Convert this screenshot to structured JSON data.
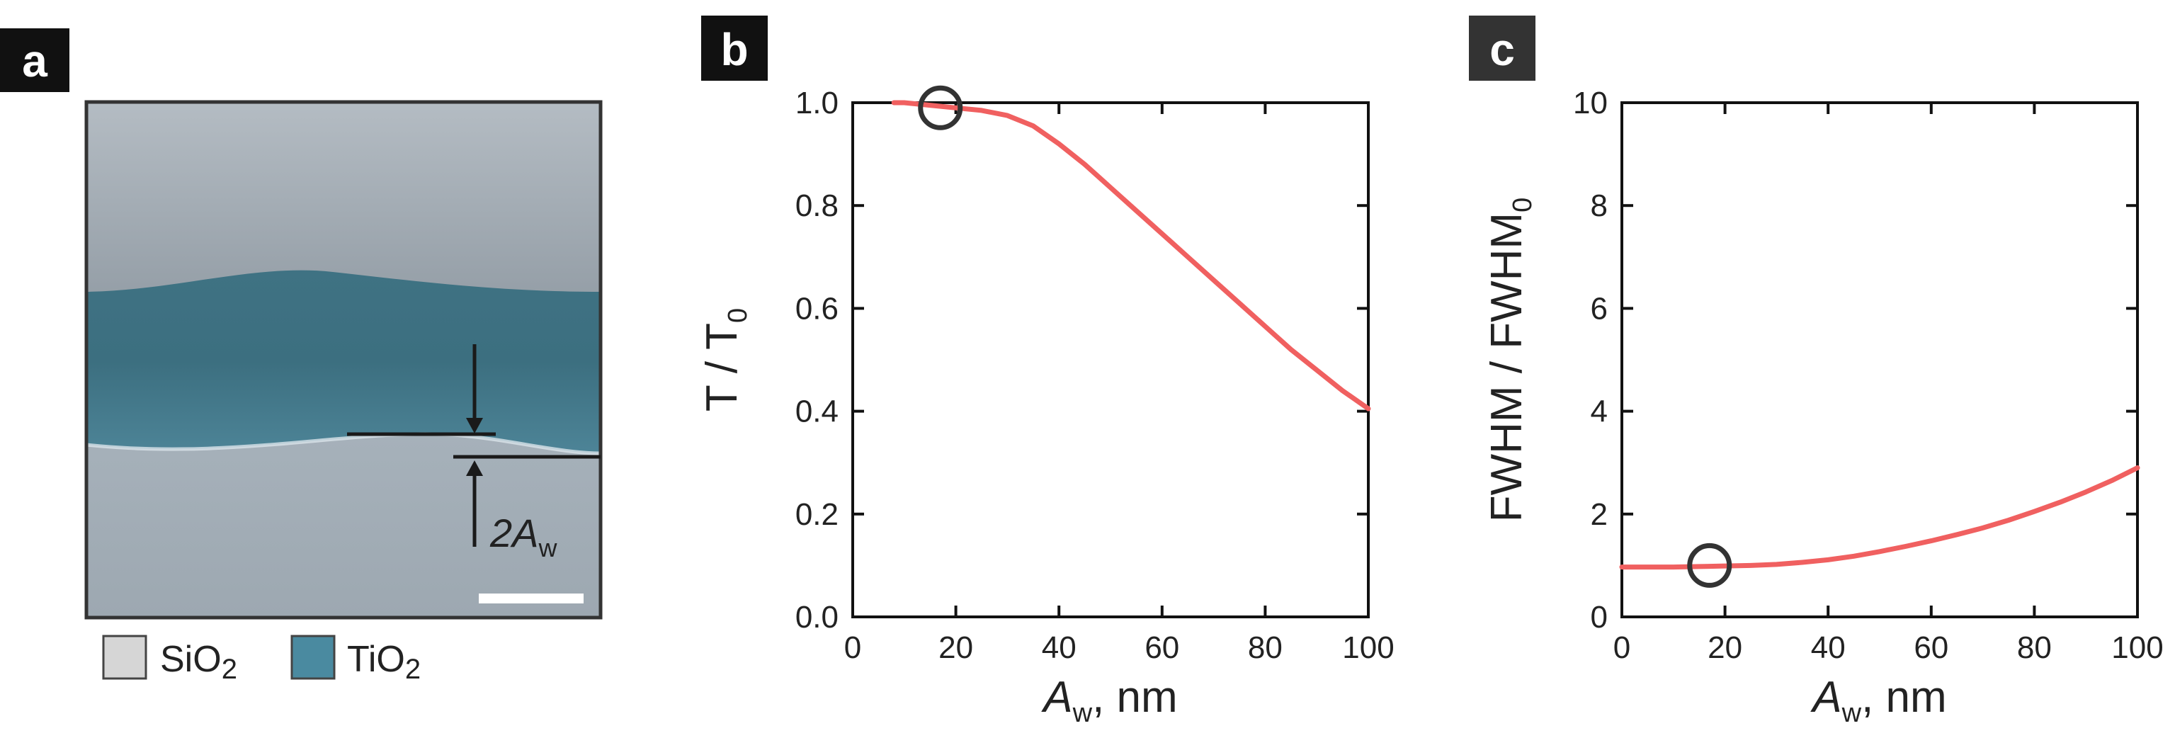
{
  "panels": {
    "a": {
      "label": "a"
    },
    "b": {
      "label": "b"
    },
    "c": {
      "label": "c"
    }
  },
  "panel_a": {
    "legend": [
      {
        "name": "SiO",
        "sub": "2",
        "color": "#d6d6d6"
      },
      {
        "name": "TiO",
        "sub": "2",
        "color": "#4a8aa0"
      }
    ],
    "annotation": {
      "text": "2A",
      "sub": "w"
    }
  },
  "chart_data": [
    {
      "type": "line",
      "panel": "b",
      "xlabel": "A",
      "xlabel_sub": "w",
      "xlabel_suffix": ", nm",
      "ylabel": "T / T",
      "ylabel_sub": "0",
      "xlim": [
        0,
        100
      ],
      "ylim": [
        0,
        1.0
      ],
      "xticks": [
        0,
        20,
        40,
        60,
        80,
        100
      ],
      "yticks": [
        0.0,
        0.2,
        0.4,
        0.6,
        0.8,
        1.0
      ],
      "ytick_labels": [
        "0.0",
        "0.2",
        "0.4",
        "0.6",
        "0.8",
        "1.0"
      ],
      "series": [
        {
          "color": "#f06060",
          "x": [
            8,
            10,
            15,
            20,
            25,
            30,
            35,
            40,
            45,
            50,
            55,
            60,
            65,
            70,
            75,
            80,
            85,
            90,
            95,
            100
          ],
          "y": [
            1.0,
            1.0,
            0.995,
            0.99,
            0.985,
            0.975,
            0.955,
            0.92,
            0.88,
            0.835,
            0.79,
            0.745,
            0.7,
            0.655,
            0.61,
            0.565,
            0.52,
            0.48,
            0.44,
            0.405
          ]
        }
      ],
      "marker": {
        "x": 17,
        "y": 0.99,
        "shape": "circle"
      }
    },
    {
      "type": "line",
      "panel": "c",
      "xlabel": "A",
      "xlabel_sub": "w",
      "xlabel_suffix": ", nm",
      "ylabel": "FWHM / FWHM",
      "ylabel_sub": "0",
      "xlim": [
        0,
        100
      ],
      "ylim": [
        0,
        10
      ],
      "xticks": [
        0,
        20,
        40,
        60,
        80,
        100
      ],
      "yticks": [
        0,
        2,
        4,
        6,
        8,
        10
      ],
      "ytick_labels": [
        "0",
        "2",
        "4",
        "6",
        "8",
        "10"
      ],
      "series": [
        {
          "color": "#f06060",
          "x": [
            0,
            5,
            10,
            15,
            20,
            25,
            30,
            35,
            40,
            45,
            50,
            55,
            60,
            65,
            70,
            75,
            80,
            85,
            90,
            95,
            100
          ],
          "y": [
            0.97,
            0.97,
            0.97,
            0.98,
            0.99,
            1.0,
            1.02,
            1.06,
            1.11,
            1.18,
            1.27,
            1.37,
            1.48,
            1.6,
            1.73,
            1.88,
            2.05,
            2.23,
            2.43,
            2.65,
            2.9
          ]
        }
      ],
      "marker": {
        "x": 17,
        "y": 1.0,
        "shape": "circle"
      }
    }
  ]
}
